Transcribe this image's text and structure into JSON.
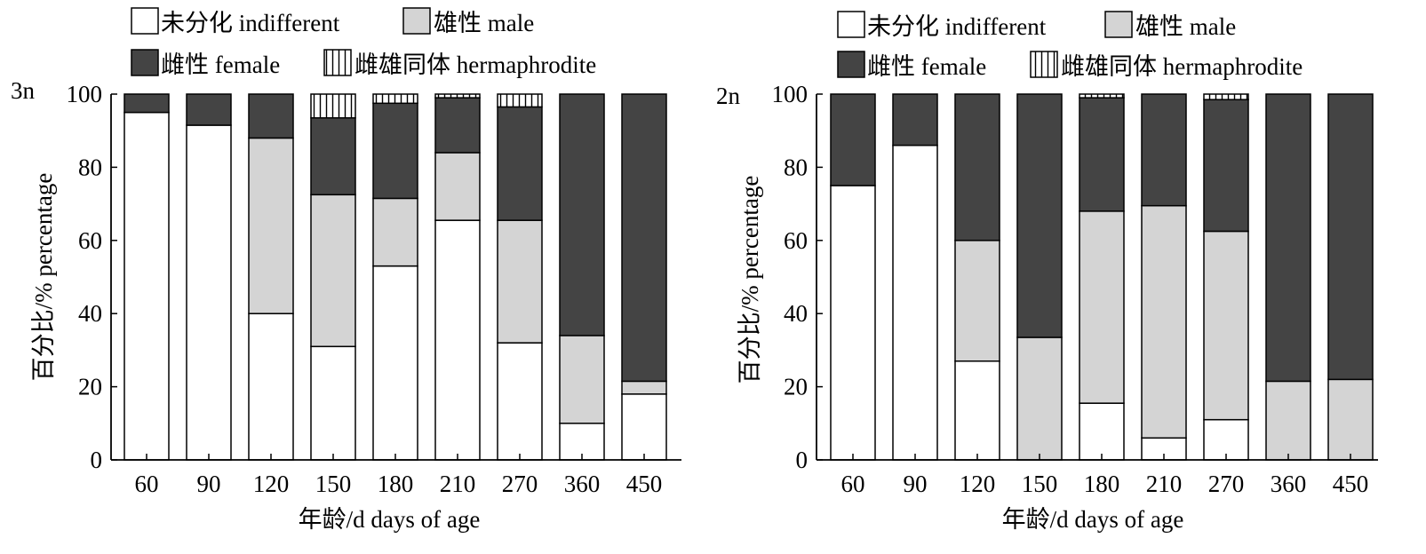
{
  "legend": {
    "indifferent": "未分化 indifferent",
    "male": "雄性 male",
    "female": "雌性 female",
    "hermaphrodite": "雌雄同体 hermaphrodite"
  },
  "colors": {
    "indifferent": "#ffffff",
    "male": "#d4d4d4",
    "female": "#444444",
    "hermaphrodite": "#ffffff",
    "stroke": "#000000"
  },
  "chart_data": [
    {
      "type": "bar",
      "stacked": true,
      "panel_label": "3n",
      "xlabel": "年龄/d  days of age",
      "ylabel": "百分比/% percentage",
      "ylim": [
        0,
        100
      ],
      "yticks": [
        0,
        20,
        40,
        60,
        80,
        100
      ],
      "categories": [
        "60",
        "90",
        "120",
        "150",
        "180",
        "210",
        "270",
        "360",
        "450"
      ],
      "series": [
        {
          "key": "indifferent",
          "name": "未分化 indifferent",
          "values": [
            95,
            91.5,
            40,
            31,
            53,
            65.5,
            32,
            10,
            18
          ]
        },
        {
          "key": "male",
          "name": "雄性 male",
          "values": [
            0,
            0,
            48,
            41.5,
            18.5,
            18.5,
            33.5,
            24,
            3.5
          ]
        },
        {
          "key": "female",
          "name": "雌性 female",
          "values": [
            5,
            8.5,
            12,
            21,
            26,
            15,
            31,
            66,
            78.5
          ]
        },
        {
          "key": "hermaphrodite",
          "name": "雌雄同体 hermaphrodite",
          "values": [
            0,
            0,
            0,
            6.5,
            2.5,
            1,
            3.5,
            0,
            0
          ]
        }
      ],
      "legend_position": "top"
    },
    {
      "type": "bar",
      "stacked": true,
      "panel_label": "2n",
      "xlabel": "年龄/d  days of age",
      "ylabel": "百分比/% percentage",
      "ylim": [
        0,
        100
      ],
      "yticks": [
        0,
        20,
        40,
        60,
        80,
        100
      ],
      "categories": [
        "60",
        "90",
        "120",
        "150",
        "180",
        "210",
        "270",
        "360",
        "450"
      ],
      "series": [
        {
          "key": "indifferent",
          "name": "未分化 indifferent",
          "values": [
            75,
            86,
            27,
            0,
            15.5,
            6,
            11,
            0,
            0
          ]
        },
        {
          "key": "male",
          "name": "雄性 male",
          "values": [
            0,
            0,
            33,
            33.5,
            52.5,
            63.5,
            51.5,
            21.5,
            22
          ]
        },
        {
          "key": "female",
          "name": "雌性 female",
          "values": [
            25,
            14,
            40,
            66.5,
            31,
            30.5,
            36,
            78.5,
            78
          ]
        },
        {
          "key": "hermaphrodite",
          "name": "雌雄同体 hermaphrodite",
          "values": [
            0,
            0,
            0,
            0,
            1,
            0,
            1.5,
            0,
            0
          ]
        }
      ],
      "legend_position": "top"
    }
  ]
}
